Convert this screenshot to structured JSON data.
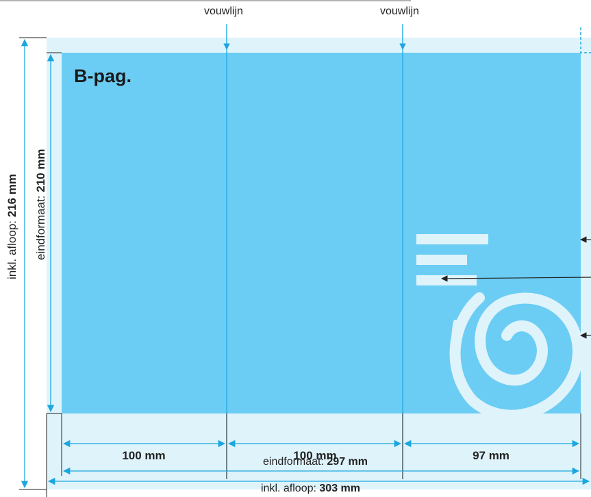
{
  "page": {
    "title": "B-pag."
  },
  "fold_lines": [
    {
      "label": "vouwlijn"
    },
    {
      "label": "vouwlijn"
    }
  ],
  "panels": [
    {
      "width": "100 mm"
    },
    {
      "width": "100 mm"
    },
    {
      "width": "97 mm"
    }
  ],
  "dimensions": {
    "final_width": {
      "label": "eindformaat: ",
      "value": "297 mm"
    },
    "bleed_width": {
      "label": "inkl. afloop: ",
      "value": "303 mm"
    },
    "final_height": {
      "label": "eindformaat: ",
      "value": "210 mm"
    },
    "bleed_height": {
      "label": "inkl. afloop: ",
      "value": "216 mm"
    }
  },
  "colors": {
    "panel_fill": "#6bcdf4",
    "bleed_fill": "#dff3fb",
    "dimension_line": "#1ba6e0",
    "white_shapes": "#dff3fb"
  }
}
